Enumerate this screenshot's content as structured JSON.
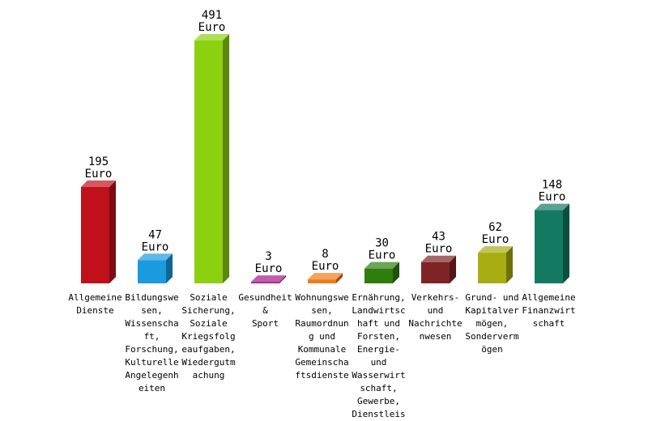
{
  "chart_data": {
    "type": "bar",
    "style": "3d",
    "unit": "Euro",
    "ylim": [
      0,
      491
    ],
    "grid": false,
    "legend": "none",
    "categories": [
      "Allgemeine Dienste",
      "Bildungswesen, Wissenschaft, Forschung, Kulturelle Angelegenheiten",
      "Soziale Sicherung, Soziale Kriegsfolgeaufgaben, Wiedergutmachung",
      "Gesundheit & Sport",
      "Wohnungswesen, Raumordnung und Kommunale Gemeinschaftsdienste",
      "Ernährung, Landwirtschaft und Forsten, Energie- und Wasserwirtschaft, Gewerbe, Dienstleis",
      "Verkehrs- und Nachrichtenwesen",
      "Grund- und Kapitalvermögen, Sondervermögen",
      "Allgemeine Finanzwirtschaft"
    ],
    "category_label_lines": [
      [
        "Allgemeine",
        "Dienste"
      ],
      [
        "Bildungswe",
        "sen,",
        "Wissenscha",
        "ft,",
        "Forschung,",
        "Kulturelle",
        "Angelegenh",
        "eiten"
      ],
      [
        "Soziale",
        "Sicherung,",
        "Soziale",
        "Kriegsfolg",
        "eaufgaben,",
        "Wiedergutm",
        "achung"
      ],
      [
        "Gesundheit",
        "&",
        "Sport"
      ],
      [
        "Wohnungswe",
        "sen,",
        "Raumordnun",
        "g und",
        "Kommunale",
        "Gemeinscha",
        "ftsdienste"
      ],
      [
        "Ernährung,",
        "Landwirtsc",
        "haft und",
        "Forsten,",
        "Energie-",
        "und",
        "Wasserwirt",
        "schaft,",
        "Gewerbe,",
        "Dienstleis"
      ],
      [
        "Verkehrs-",
        "und",
        "Nachrichte",
        "nwesen"
      ],
      [
        "Grund- und",
        "Kapitalver",
        "mögen,",
        "Sonderverm",
        "ögen"
      ],
      [
        "Allgemeine",
        "Finanzwirt",
        "schaft"
      ]
    ],
    "values": [
      195,
      47,
      491,
      3,
      8,
      30,
      43,
      62,
      148
    ],
    "colors": [
      "#c0111a",
      "#1a9be0",
      "#8cd10f",
      "#a8188a",
      "#f07a1a",
      "#2f7d0c",
      "#7e2424",
      "#a8ad12",
      "#137a62"
    ]
  }
}
